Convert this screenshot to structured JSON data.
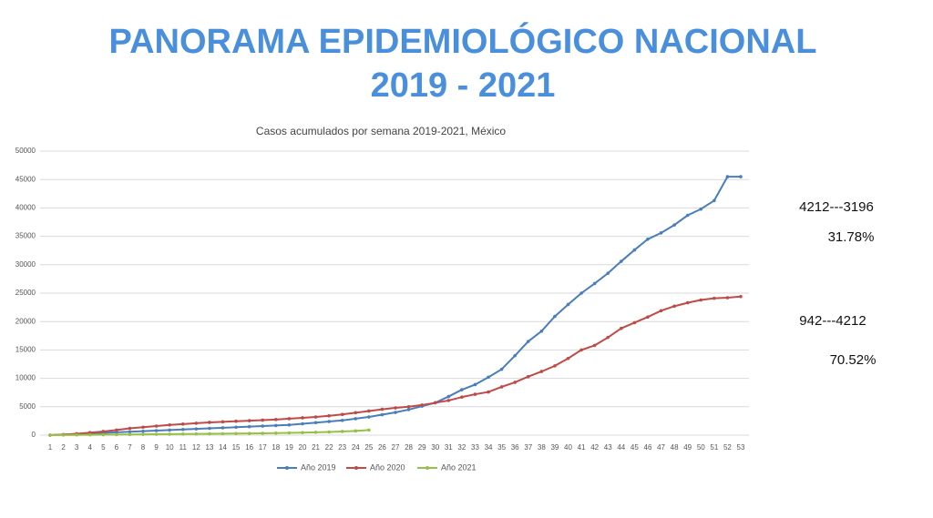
{
  "header": {
    "title_line1": "PANORAMA EPIDEMIOLÓGICO  NACIONAL",
    "title_line2": "2019 - 2021"
  },
  "side_notes": [
    "4212---3196",
    "31.78%",
    "942---4212",
    "70.52%"
  ],
  "chart_data": {
    "type": "line",
    "title": "Casos acumulados por semana 2019-2021, México",
    "categories": [
      "1",
      "2",
      "3",
      "4",
      "5",
      "6",
      "7",
      "8",
      "9",
      "10",
      "11",
      "12",
      "13",
      "14",
      "15",
      "16",
      "17",
      "18",
      "19",
      "20",
      "21",
      "22",
      "23",
      "24",
      "25",
      "26",
      "27",
      "28",
      "29",
      "30",
      "31",
      "32",
      "33",
      "34",
      "35",
      "36",
      "37",
      "38",
      "39",
      "40",
      "41",
      "42",
      "43",
      "44",
      "45",
      "46",
      "47",
      "48",
      "49",
      "50",
      "51",
      "52",
      "53"
    ],
    "series": [
      {
        "name": "Año 2019",
        "color": "#4a7ebb",
        "values": [
          0,
          100,
          200,
          300,
          400,
          500,
          600,
          700,
          800,
          900,
          1000,
          1100,
          1200,
          1300,
          1400,
          1500,
          1600,
          1700,
          1800,
          2000,
          2200,
          2400,
          2600,
          2900,
          3200,
          3600,
          4000,
          4500,
          5100,
          5700,
          6800,
          8000,
          8900,
          10200,
          11600,
          14000,
          16500,
          18300,
          20900,
          23000,
          25000,
          26700,
          28500,
          30600,
          32600,
          34500,
          35600,
          37000,
          38700,
          39800,
          41300,
          45500,
          45500
        ]
      },
      {
        "name": "Año 2020",
        "color": "#be4b48",
        "values": [
          0,
          100,
          250,
          450,
          650,
          900,
          1200,
          1400,
          1600,
          1800,
          1950,
          2100,
          2250,
          2350,
          2450,
          2550,
          2650,
          2750,
          2900,
          3050,
          3200,
          3400,
          3650,
          3950,
          4250,
          4550,
          4800,
          5000,
          5300,
          5700,
          6100,
          6700,
          7200,
          7600,
          8500,
          9300,
          10300,
          11200,
          12200,
          13500,
          15000,
          15800,
          17200,
          18800,
          19800,
          20800,
          21900,
          22700,
          23300,
          23800,
          24100,
          24200,
          24400
        ]
      },
      {
        "name": "Año 2021",
        "color": "#98c047",
        "values": [
          0,
          20,
          40,
          60,
          80,
          100,
          120,
          140,
          160,
          180,
          200,
          220,
          240,
          260,
          280,
          300,
          330,
          360,
          400,
          450,
          500,
          560,
          650,
          750,
          900,
          null,
          null,
          null,
          null,
          null,
          null,
          null,
          null,
          null,
          null,
          null,
          null,
          null,
          null,
          null,
          null,
          null,
          null,
          null,
          null,
          null,
          null,
          null,
          null,
          null,
          null,
          null,
          null
        ]
      }
    ],
    "ylim": [
      0,
      50000
    ],
    "yticks": [
      0,
      5000,
      10000,
      15000,
      20000,
      25000,
      30000,
      35000,
      40000,
      45000,
      50000
    ],
    "grid": true,
    "legend": "bottom"
  }
}
